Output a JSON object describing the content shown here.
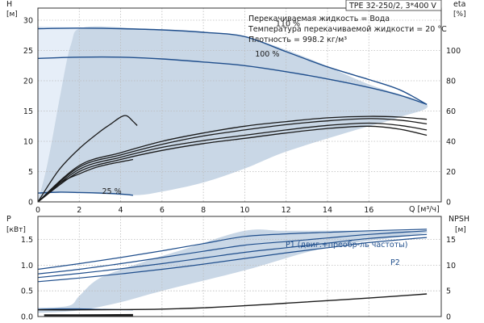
{
  "chart_data": [
    {
      "type": "line",
      "title": "TPE 32-250/2, 3*400 V",
      "annotations": [
        "Перекачиваемая жидкость = Вода",
        "Температура перекачиваемой жидкости = 20 °C",
        "Плотность = 998.2 кг/м³"
      ],
      "x_label": "Q [м³/ч]",
      "y_label_left": "H",
      "y_unit_left": "[м]",
      "y_label_right": "eta",
      "y_unit_right": "[%]",
      "x_ticks": [
        "0",
        "2",
        "4",
        "6",
        "8",
        "10",
        "12",
        "14",
        "16"
      ],
      "y_ticks_left": [
        "0",
        "5",
        "10",
        "15",
        "20",
        "25",
        "30"
      ],
      "y_ticks_right": [
        "0",
        "20",
        "40",
        "60",
        "80",
        "100"
      ],
      "xlim": [
        0,
        19.5
      ],
      "ylim_left": [
        0,
        32
      ],
      "ylim_right": [
        0,
        128
      ],
      "grid": true,
      "curve_labels": [
        {
          "text": "110 %",
          "x": 11.5,
          "y": 29.5
        },
        {
          "text": "100 %",
          "x": 10.5,
          "y": 24.5
        },
        {
          "text": "25 %",
          "x": 3.1,
          "y": 1.8
        }
      ],
      "operating_area": {
        "boundary": [
          [
            0,
            0
          ],
          [
            0.5,
            7
          ],
          [
            1.1,
            18
          ],
          [
            1.6,
            26
          ],
          [
            2.2,
            28.8
          ],
          [
            5,
            28.6
          ],
          [
            8,
            28.1
          ],
          [
            10,
            27.3
          ],
          [
            13,
            23.8
          ],
          [
            16,
            19.4
          ],
          [
            18.8,
            16.1
          ],
          [
            17.5,
            14
          ],
          [
            15,
            11.5
          ],
          [
            12,
            8.3
          ],
          [
            10,
            5.5
          ],
          [
            8,
            3.2
          ],
          [
            6,
            1.7
          ],
          [
            4.6,
            1.1
          ],
          [
            2,
            1.5
          ],
          [
            0.7,
            1.65
          ],
          [
            0.3,
            0.8
          ]
        ],
        "light_boundary": [
          [
            0,
            0
          ],
          [
            0,
            29
          ],
          [
            2.2,
            28.8
          ],
          [
            1.6,
            26
          ],
          [
            1.1,
            18
          ],
          [
            0.5,
            7
          ]
        ]
      },
      "series": [
        {
          "name": "110 %",
          "axis": "left",
          "color": "#1f4e8c",
          "points": [
            [
              0,
              28.6
            ],
            [
              2,
              28.7
            ],
            [
              4,
              28.6
            ],
            [
              6,
              28.4
            ],
            [
              8,
              28.0
            ],
            [
              10,
              27.3
            ],
            [
              12,
              24.8
            ],
            [
              14,
              22.3
            ],
            [
              16,
              20.2
            ],
            [
              17.5,
              18.5
            ],
            [
              18.8,
              16.1
            ]
          ]
        },
        {
          "name": "100 %",
          "axis": "left",
          "color": "#1f4e8c",
          "points": [
            [
              0,
              23.7
            ],
            [
              2,
              23.9
            ],
            [
              4,
              23.9
            ],
            [
              6,
              23.6
            ],
            [
              8,
              23.1
            ],
            [
              10,
              22.5
            ],
            [
              12,
              21.5
            ],
            [
              14,
              20.3
            ],
            [
              16,
              18.9
            ],
            [
              17.5,
              17.6
            ],
            [
              18.8,
              16.1
            ]
          ]
        },
        {
          "name": "25 %",
          "axis": "left",
          "color": "#1f4e8c",
          "points": [
            [
              0,
              1.45
            ],
            [
              1,
              1.6
            ],
            [
              2,
              1.55
            ],
            [
              3,
              1.45
            ],
            [
              4,
              1.3
            ],
            [
              4.6,
              1.1
            ]
          ]
        },
        {
          "name": "",
          "axis": "left",
          "color": "#1a1a1a",
          "points": [
            [
              0,
              0
            ],
            [
              1,
              5.2
            ],
            [
              2,
              8.8
            ],
            [
              3,
              11.6
            ],
            [
              3.5,
              12.8
            ],
            [
              4,
              14
            ],
            [
              4.3,
              14.2
            ],
            [
              4.6,
              13.3
            ],
            [
              4.8,
              12.6
            ]
          ]
        },
        {
          "name": "",
          "axis": "right",
          "color": "#1a1a1a",
          "points": [
            [
              0,
              0
            ],
            [
              2,
              20
            ],
            [
              4,
              28
            ],
            [
              6,
              34
            ],
            [
              8,
              38.5
            ],
            [
              10,
              42
            ],
            [
              12,
              45.5
            ],
            [
              14,
              48.5
            ],
            [
              16,
              50
            ],
            [
              17.5,
              48
            ],
            [
              18.8,
              44
            ]
          ]
        },
        {
          "name": "",
          "axis": "right",
          "color": "#1a1a1a",
          "points": [
            [
              0,
              0
            ],
            [
              2,
              21.5
            ],
            [
              4,
              29.5
            ],
            [
              6,
              36
            ],
            [
              8,
              40.5
            ],
            [
              10,
              44
            ],
            [
              12,
              47.5
            ],
            [
              14,
              50.5
            ],
            [
              16,
              52
            ],
            [
              17.5,
              50.5
            ],
            [
              18.8,
              47.5
            ]
          ]
        },
        {
          "name": "",
          "axis": "right",
          "color": "#1a1a1a",
          "points": [
            [
              0,
              0
            ],
            [
              2,
              23
            ],
            [
              4,
              31
            ],
            [
              6,
              38
            ],
            [
              8,
              43.5
            ],
            [
              10,
              47.5
            ],
            [
              12,
              51
            ],
            [
              14,
              53.5
            ],
            [
              16,
              55
            ],
            [
              17.5,
              54
            ],
            [
              18.8,
              51.5
            ]
          ]
        },
        {
          "name": "",
          "axis": "right",
          "color": "#1a1a1a",
          "points": [
            [
              0,
              0
            ],
            [
              2,
              24
            ],
            [
              4,
              32.5
            ],
            [
              6,
              40
            ],
            [
              8,
              45.5
            ],
            [
              10,
              50
            ],
            [
              12,
              53
            ],
            [
              14,
              55.5
            ],
            [
              16,
              56.5
            ],
            [
              17.5,
              56
            ],
            [
              18.8,
              54.5
            ]
          ]
        },
        {
          "name": "",
          "axis": "right",
          "color": "#1a1a1a",
          "points": [
            [
              0,
              0
            ],
            [
              1,
              12
            ],
            [
              2,
              18.5
            ],
            [
              3,
              23.5
            ],
            [
              4.6,
              28
            ]
          ]
        }
      ]
    },
    {
      "type": "line",
      "x_label": "Q [м³/ч]",
      "y_label_left": "P",
      "y_unit_left": "[кВт]",
      "y_label_right": "NPSH",
      "y_unit_right": "[м]",
      "y_ticks_left": [
        "0.0",
        "0.5",
        "1.0",
        "1.5"
      ],
      "y_ticks_right": [
        "0",
        "5",
        "10",
        "15"
      ],
      "xlim": [
        0,
        19.5
      ],
      "ylim_left": [
        0,
        1.95
      ],
      "ylim_right": [
        0,
        19.5
      ],
      "grid": true,
      "legend": [
        {
          "name": "P1 (двиг.+преобр-ль частоты)",
          "placement": "top-right"
        },
        {
          "name": "P2",
          "placement": "right"
        }
      ],
      "operating_area": {
        "boundary": [
          [
            0,
            0.17
          ],
          [
            1.5,
            0.21
          ],
          [
            2,
            0.4
          ],
          [
            3,
            0.75
          ],
          [
            5,
            1.05
          ],
          [
            7,
            1.3
          ],
          [
            10,
            1.67
          ],
          [
            12,
            1.67
          ],
          [
            16,
            1.67
          ],
          [
            18.8,
            1.63
          ],
          [
            14,
            1.35
          ],
          [
            10,
            0.9
          ],
          [
            6,
            0.5
          ],
          [
            4,
            0.28
          ],
          [
            2,
            0.12
          ],
          [
            0,
            0.07
          ]
        ]
      },
      "series": [
        {
          "name": "P1 (двиг.+преобр-ль частоты)",
          "axis": "left",
          "color": "#1f4e8c",
          "points": [
            [
              0,
              0.92
            ],
            [
              2,
              1.03
            ],
            [
              4,
              1.15
            ],
            [
              6,
              1.28
            ],
            [
              8,
              1.42
            ],
            [
              10,
              1.56
            ],
            [
              12,
              1.61
            ],
            [
              14,
              1.64
            ],
            [
              16,
              1.67
            ],
            [
              18.8,
              1.7
            ]
          ]
        },
        {
          "name": "",
          "axis": "left",
          "color": "#1f4e8c",
          "points": [
            [
              0,
              0.83
            ],
            [
              2,
              0.92
            ],
            [
              4,
              1.03
            ],
            [
              6,
              1.15
            ],
            [
              8,
              1.27
            ],
            [
              10,
              1.39
            ],
            [
              12,
              1.46
            ],
            [
              14,
              1.53
            ],
            [
              16,
              1.6
            ],
            [
              18.8,
              1.67
            ]
          ]
        },
        {
          "name": "",
          "axis": "left",
          "color": "#1f4e8c",
          "points": [
            [
              0,
              0.76
            ],
            [
              2,
              0.84
            ],
            [
              4,
              0.93
            ],
            [
              6,
              1.03
            ],
            [
              8,
              1.14
            ],
            [
              10,
              1.25
            ],
            [
              12,
              1.34
            ],
            [
              14,
              1.43
            ],
            [
              16,
              1.52
            ],
            [
              18.8,
              1.6
            ]
          ]
        },
        {
          "name": "P2",
          "axis": "left",
          "color": "#1f4e8c",
          "points": [
            [
              0,
              0.68
            ],
            [
              2,
              0.75
            ],
            [
              4,
              0.83
            ],
            [
              6,
              0.92
            ],
            [
              8,
              1.02
            ],
            [
              10,
              1.13
            ],
            [
              12,
              1.24
            ],
            [
              14,
              1.34
            ],
            [
              16,
              1.44
            ],
            [
              18.8,
              1.54
            ]
          ]
        },
        {
          "name": "",
          "axis": "left",
          "color": "#1f4e8c",
          "points": [
            [
              0,
              0.14
            ],
            [
              1,
              0.15
            ],
            [
              2,
              0.15
            ],
            [
              3,
              0.14
            ],
            [
              4.6,
              0.13
            ]
          ]
        },
        {
          "name": "",
          "axis": "right",
          "color": "#1a1a1a",
          "points": [
            [
              0,
              1.3
            ],
            [
              2,
              1.3
            ],
            [
              4,
              1.35
            ],
            [
              6,
              1.45
            ],
            [
              8,
              1.7
            ],
            [
              10,
              2.1
            ],
            [
              12,
              2.6
            ],
            [
              14,
              3.1
            ],
            [
              16,
              3.6
            ],
            [
              18.8,
              4.4
            ]
          ]
        },
        {
          "name": "",
          "axis": "right",
          "color": "#1a1a1a",
          "points": [
            [
              0.3,
              0.2
            ],
            [
              2,
              0.2
            ],
            [
              4.6,
              0.25
            ]
          ]
        }
      ]
    }
  ]
}
